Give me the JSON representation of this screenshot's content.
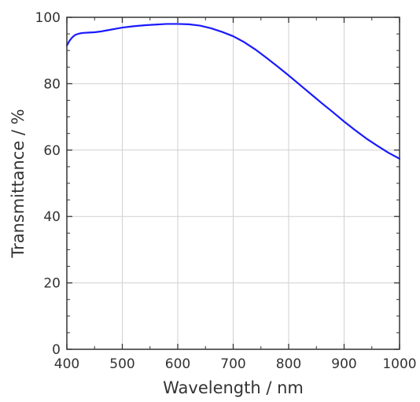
{
  "chart_data": {
    "type": "line",
    "title": "",
    "xlabel": "Wavelength / nm",
    "ylabel": "Transmittance / %",
    "xlim": [
      400,
      1000
    ],
    "ylim": [
      0,
      100
    ],
    "xticks": [
      400,
      500,
      600,
      700,
      800,
      900,
      1000
    ],
    "yticks": [
      0,
      20,
      40,
      60,
      80,
      100
    ],
    "grid": true,
    "series": [
      {
        "color": "#1a1aff",
        "x": [
          400,
          405,
          410,
          415,
          420,
          425,
          430,
          440,
          450,
          460,
          470,
          480,
          490,
          500,
          520,
          540,
          560,
          580,
          600,
          620,
          640,
          660,
          680,
          700,
          720,
          740,
          760,
          780,
          800,
          820,
          840,
          860,
          880,
          900,
          920,
          940,
          960,
          980,
          1000
        ],
        "y": [
          91.5,
          93.0,
          94.0,
          94.7,
          95.0,
          95.2,
          95.3,
          95.4,
          95.5,
          95.7,
          96.0,
          96.3,
          96.6,
          96.9,
          97.3,
          97.6,
          97.8,
          98.0,
          98.0,
          97.9,
          97.5,
          96.7,
          95.6,
          94.3,
          92.5,
          90.3,
          87.8,
          85.2,
          82.5,
          79.7,
          76.9,
          74.1,
          71.4,
          68.6,
          66.0,
          63.5,
          61.3,
          59.2,
          57.4
        ]
      }
    ]
  }
}
